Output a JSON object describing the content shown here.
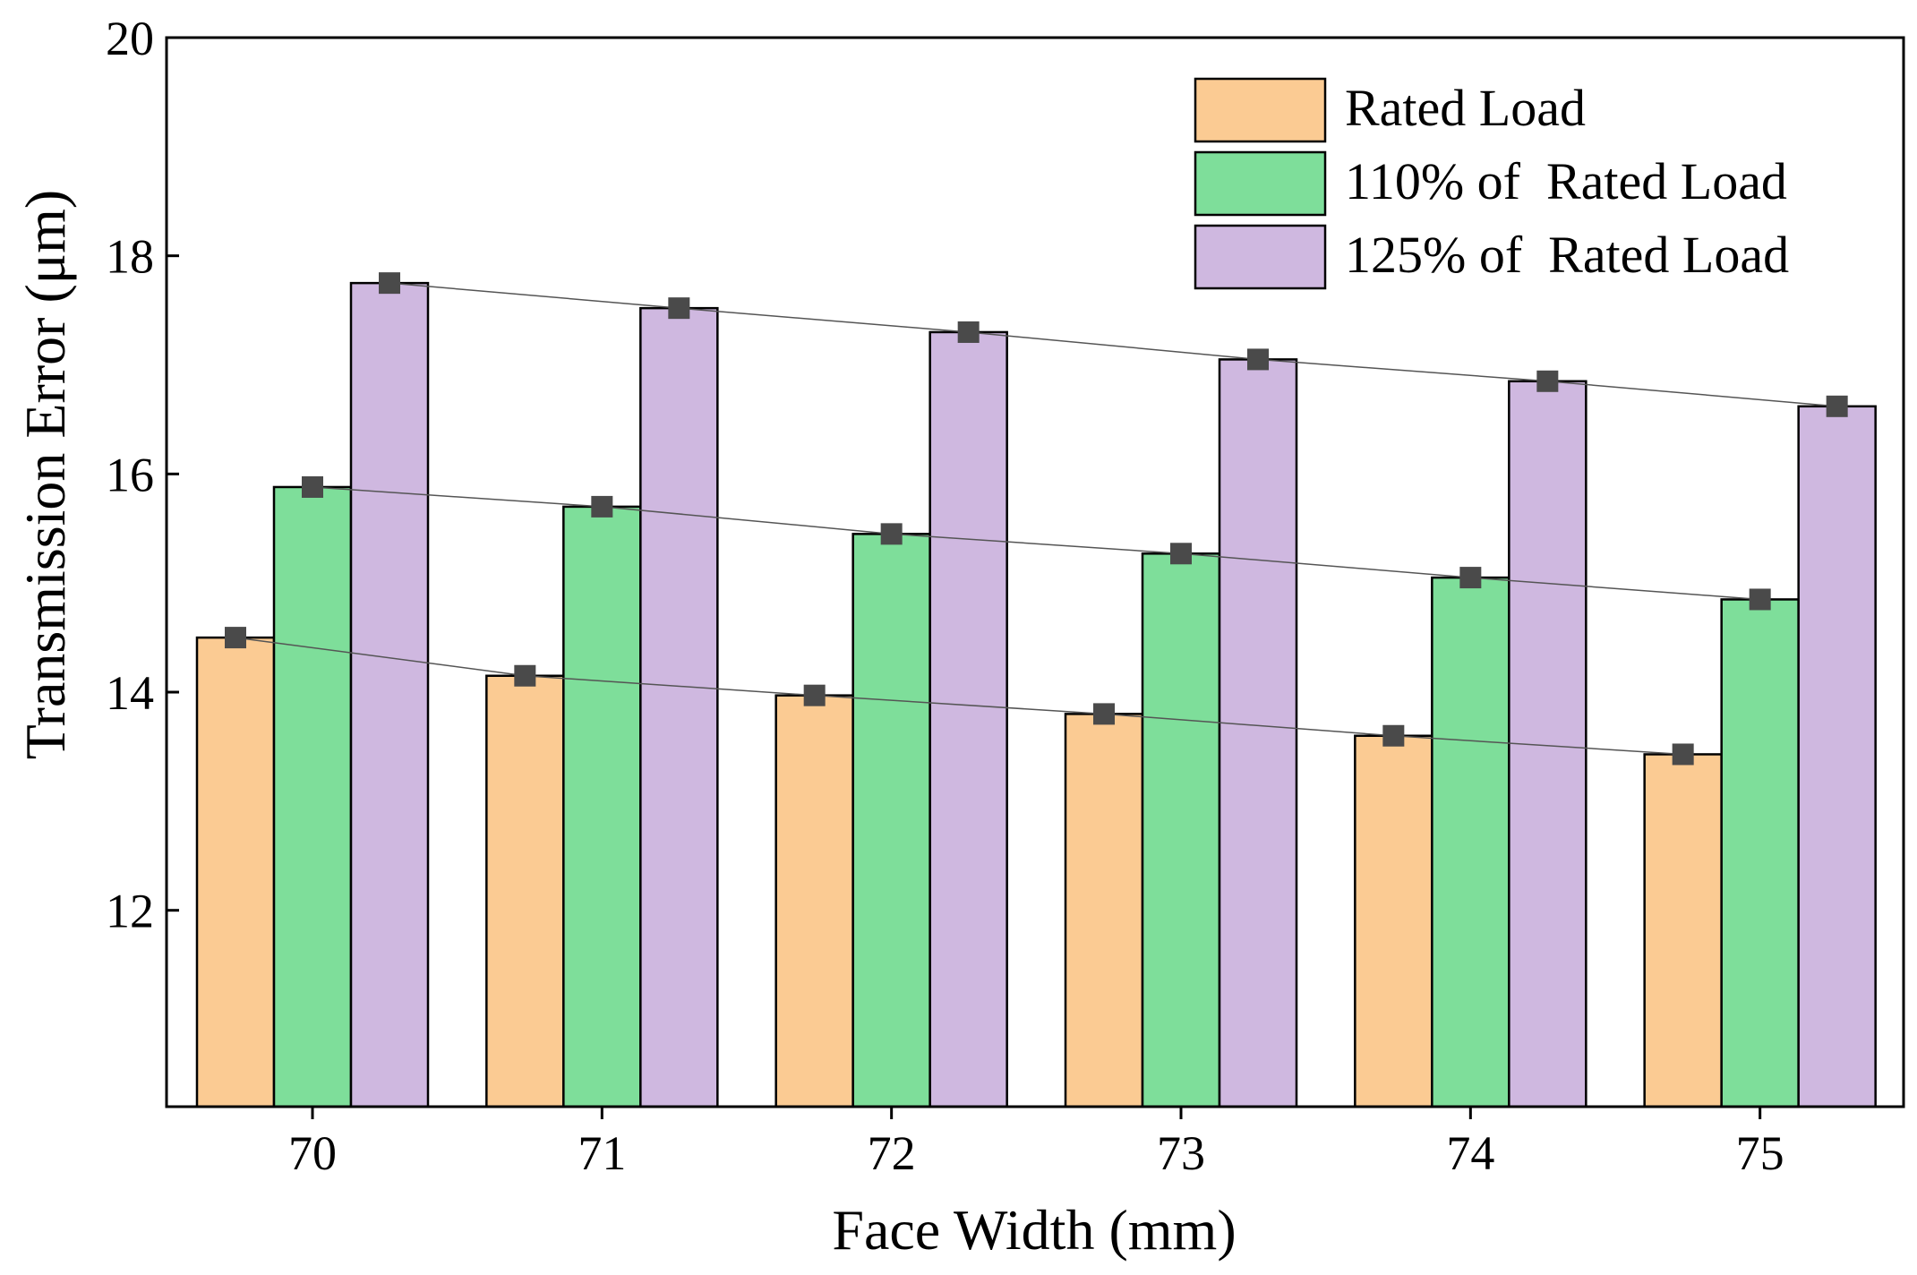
{
  "chart_data": {
    "type": "bar",
    "title": "",
    "xlabel": "Face Width (mm)",
    "ylabel": "Transmission Error (μm)",
    "ylim": [
      10.2,
      20
    ],
    "yticks": [
      12,
      14,
      16,
      18,
      20
    ],
    "categories": [
      "70",
      "71",
      "72",
      "73",
      "74",
      "75"
    ],
    "series": [
      {
        "name": "Rated Load",
        "color": "#FBCB93",
        "values": [
          14.5,
          14.15,
          13.97,
          13.8,
          13.6,
          13.43
        ]
      },
      {
        "name": "110% of  Rated Load",
        "color": "#7EDE9A",
        "values": [
          15.88,
          15.7,
          15.45,
          15.27,
          15.05,
          14.85
        ]
      },
      {
        "name": "125% of  Rated Load",
        "color": "#CFB8E0",
        "values": [
          17.75,
          17.52,
          17.3,
          17.05,
          16.85,
          16.62
        ]
      }
    ],
    "trend_lines": true,
    "marker_color": "#4A4A4A",
    "legend_position": "top-right"
  }
}
